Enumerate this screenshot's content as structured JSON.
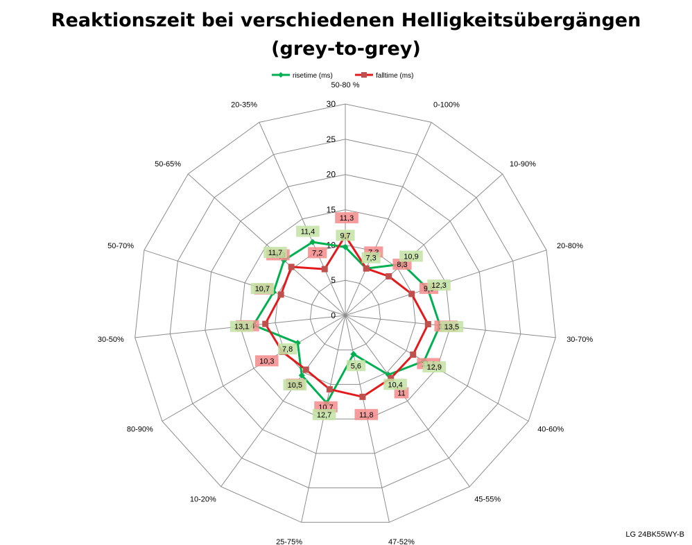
{
  "chart_data": {
    "type": "radar",
    "title": [
      "Reaktionszeit bei verschiedenen Helligkeitsübergängen",
      "(grey-to-grey)"
    ],
    "categories": [
      "50-80 %",
      "0-100%",
      "10-90%",
      "20-80%",
      "30-70%",
      "40-60%",
      "45-55%",
      "47-52%",
      "25-75%",
      "10-20%",
      "80-90%",
      "30-50%",
      "50-70%",
      "50-65%",
      "20-35%"
    ],
    "radial_axis": {
      "min": 0,
      "max": 30,
      "step": 5,
      "ticks": [
        "0",
        "5",
        "10",
        "15",
        "20",
        "25",
        "30"
      ]
    },
    "series": [
      {
        "name": "risetime (ms)",
        "color": "#00b050",
        "marker": "diamond",
        "label_bg": "#c3e2a3",
        "values": [
          9.7,
          7.3,
          10.9,
          12.3,
          13.5,
          12.9,
          10.4,
          5.6,
          12.7,
          10.5,
          7.8,
          13.1,
          10.7,
          11.7,
          11.4
        ],
        "labels": [
          "9,7",
          "7,3",
          "10,9",
          "12,3",
          "13,5",
          "12,9",
          "10,4",
          "5,6",
          "12,7",
          "10,5",
          "7,8",
          "13,1",
          "10,7",
          "11,7",
          "11,4"
        ]
      },
      {
        "name": "falltime (ms)",
        "color": "#e31a1c",
        "marker": "square",
        "label_bg": "#f58b8b",
        "values": [
          11.3,
          7.3,
          8.3,
          9.9,
          11.8,
          11.1,
          11,
          11.8,
          10.7,
          9.5,
          10.3,
          11.4,
          9.6,
          10.3,
          7.2
        ],
        "labels": [
          "11,3",
          "7,3",
          "8,3",
          "9,9",
          "11,8",
          "11,1",
          "11",
          "11,8",
          "10,7",
          "9,5",
          "10,3",
          "11,4",
          "9,6",
          "10,3",
          "7,2"
        ]
      }
    ],
    "legend_position": "top",
    "grid": true
  },
  "footer": {
    "model": "LG 24BK55WY-B"
  }
}
